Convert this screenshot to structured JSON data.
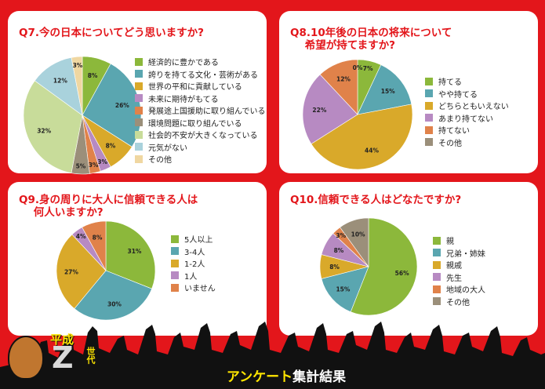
{
  "footer": {
    "title_main": "アンケート",
    "title_accent": "集計結果",
    "logo_top": "平成",
    "logo_letter": "Z",
    "logo_side": "世代"
  },
  "chart_data": [
    {
      "type": "pie",
      "title": "Q7.今の日本についてどう思いますか?",
      "categories": [
        "経済的に豊かである",
        "誇りを持てる文化・芸術がある",
        "世界の平和に貢献している",
        "未来に期待がもてる",
        "発展途上国援助に取り組んでいる",
        "環境問題に取り組んでいる",
        "社会的不安が大きくなっている",
        "元気がない",
        "その他"
      ],
      "values": [
        8,
        26,
        8,
        3,
        3,
        5,
        32,
        12,
        3
      ],
      "labels": [
        "8%",
        "26%",
        "8%",
        "3%",
        "3%",
        "5%",
        "32%",
        "12%",
        "3%"
      ],
      "colors": [
        "#8cb83b",
        "#5aa6b0",
        "#d9a92a",
        "#b78ac2",
        "#e0824a",
        "#9b8f7a",
        "#c8dc9a",
        "#a9d2dc",
        "#f0d7a1"
      ],
      "legend": "right"
    },
    {
      "type": "pie",
      "title": "Q8.10年後の日本の将来について\n    希望が持てますか?",
      "categories": [
        "持てる",
        "やや持てる",
        "どちらともいえない",
        "あまり持てない",
        "持てない",
        "その他"
      ],
      "values": [
        7,
        15,
        44,
        22,
        12,
        0
      ],
      "labels": [
        "7%",
        "15%",
        "44%",
        "22%",
        "12%",
        "0%"
      ],
      "colors": [
        "#8cb83b",
        "#5aa6b0",
        "#d9a92a",
        "#b78ac2",
        "#e0824a",
        "#9b8f7a"
      ],
      "legend": "right"
    },
    {
      "type": "pie",
      "title": "Q9.身の周りに大人に信頼できる人は\n    何人いますか?",
      "categories": [
        "5人以上",
        "3-4人",
        "1-2人",
        "1人",
        "いません"
      ],
      "values": [
        31,
        30,
        27,
        4,
        8
      ],
      "labels": [
        "31%",
        "30%",
        "27%",
        "4%",
        "8%"
      ],
      "colors": [
        "#8cb83b",
        "#5aa6b0",
        "#d9a92a",
        "#b78ac2",
        "#e0824a"
      ],
      "legend": "right"
    },
    {
      "type": "pie",
      "title": "Q10.信頼できる人はどなたですか?",
      "categories": [
        "親",
        "兄弟・姉妹",
        "親戚",
        "先生",
        "地域の大人",
        "その他"
      ],
      "values": [
        56,
        15,
        8,
        8,
        3,
        10
      ],
      "labels": [
        "56%",
        "15%",
        "8%",
        "8%",
        "3%",
        "10%"
      ],
      "colors": [
        "#8cb83b",
        "#5aa6b0",
        "#d9a92a",
        "#b78ac2",
        "#e0824a",
        "#9b8f7a"
      ],
      "legend": "right"
    }
  ]
}
